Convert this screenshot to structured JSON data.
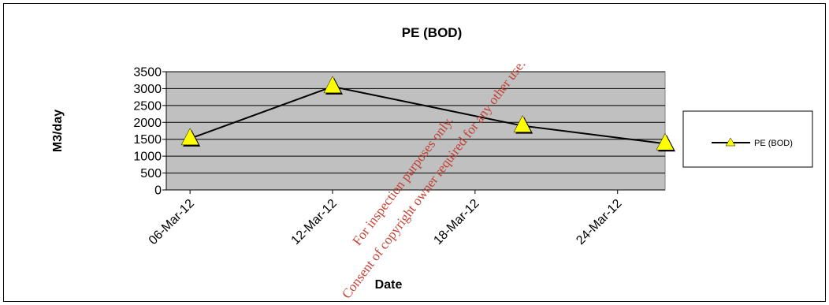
{
  "chart_data": {
    "type": "line",
    "title": "PE (BOD)",
    "xlabel": "Date",
    "ylabel": "M3/day",
    "x_ticks": [
      "06-Mar-12",
      "12-Mar-12",
      "18-Mar-12",
      "24-Mar-12"
    ],
    "xlim": [
      "05-Mar-12",
      "26-Mar-12"
    ],
    "ylim": [
      0,
      3500
    ],
    "y_ticks": [
      0,
      500,
      1000,
      1500,
      2000,
      2500,
      3000,
      3500
    ],
    "grid": "horizontal",
    "legend_position": "right",
    "series": [
      {
        "name": "PE (BOD)",
        "x": [
          "06-Mar-12",
          "12-Mar-12",
          "20-Mar-12",
          "26-Mar-12"
        ],
        "y": [
          1520,
          3060,
          1900,
          1370
        ],
        "line_color": "#000000",
        "marker": "triangle",
        "marker_color": "#ffff00"
      }
    ],
    "plot_background": "#c0c0c0"
  },
  "watermark": {
    "line1": "For inspection purposes only.",
    "line2": "Consent of copyright owner required for any other use."
  }
}
